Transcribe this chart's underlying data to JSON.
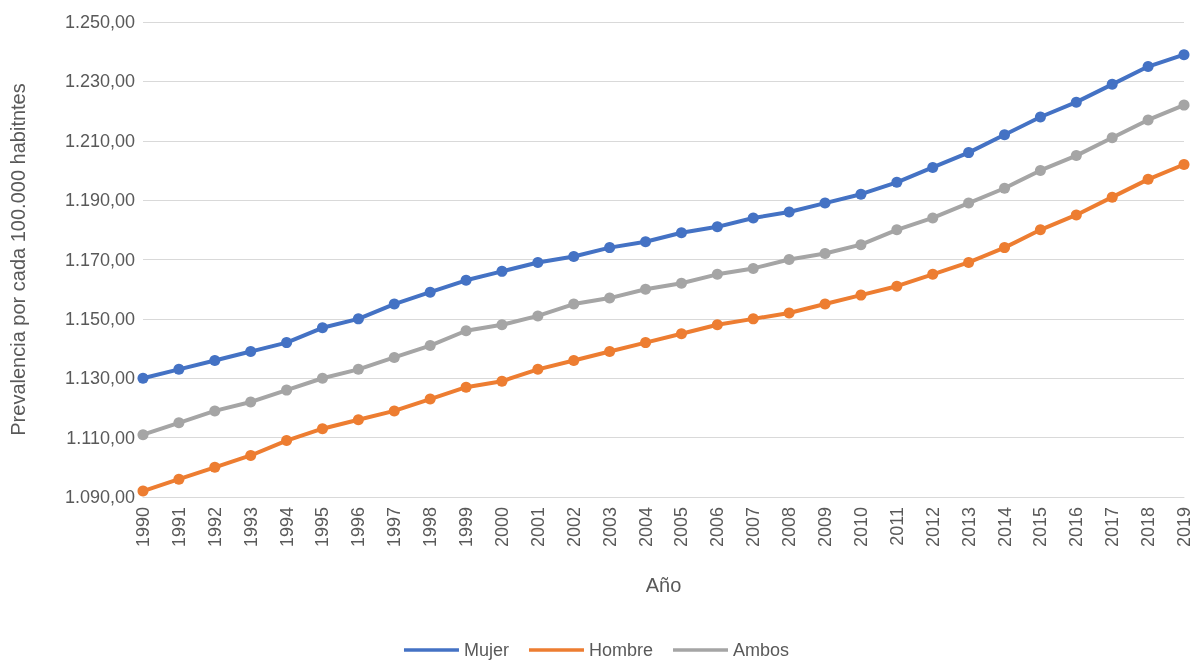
{
  "chart_data": {
    "type": "line",
    "xlabel": "Año",
    "ylabel": "Prevalencia por cada 100.000 habitntes",
    "categories": [
      "1990",
      "1991",
      "1992",
      "1993",
      "1994",
      "1995",
      "1996",
      "1997",
      "1998",
      "1999",
      "2000",
      "2001",
      "2002",
      "2003",
      "2004",
      "2005",
      "2006",
      "2007",
      "2008",
      "2009",
      "2010",
      "2011",
      "2012",
      "2013",
      "2014",
      "2015",
      "2016",
      "2017",
      "2018",
      "2019"
    ],
    "series": [
      {
        "name": "Mujer",
        "color": "#4472c4",
        "values": [
          1130,
          1133,
          1136,
          1139,
          1142,
          1147,
          1150,
          1155,
          1159,
          1163,
          1166,
          1169,
          1171,
          1174,
          1176,
          1179,
          1181,
          1184,
          1186,
          1189,
          1192,
          1196,
          1201,
          1206,
          1212,
          1218,
          1223,
          1229,
          1235,
          1239
        ]
      },
      {
        "name": "Hombre",
        "color": "#ed7d31",
        "values": [
          1092,
          1096,
          1100,
          1104,
          1109,
          1113,
          1116,
          1119,
          1123,
          1127,
          1129,
          1133,
          1136,
          1139,
          1142,
          1145,
          1148,
          1150,
          1152,
          1155,
          1158,
          1161,
          1165,
          1169,
          1174,
          1180,
          1185,
          1191,
          1197,
          1202
        ]
      },
      {
        "name": "Ambos",
        "color": "#a5a5a5",
        "values": [
          1111,
          1115,
          1119,
          1122,
          1126,
          1130,
          1133,
          1137,
          1141,
          1146,
          1148,
          1151,
          1155,
          1157,
          1160,
          1162,
          1165,
          1167,
          1170,
          1172,
          1175,
          1180,
          1184,
          1189,
          1194,
          1200,
          1205,
          1211,
          1217,
          1222
        ]
      }
    ],
    "ylim": [
      1090,
      1250
    ],
    "yticks": [
      {
        "value": 1090,
        "label": "1.090,00"
      },
      {
        "value": 1110,
        "label": "1.110,00"
      },
      {
        "value": 1130,
        "label": "1.130,00"
      },
      {
        "value": 1150,
        "label": "1.150,00"
      },
      {
        "value": 1170,
        "label": "1.170,00"
      },
      {
        "value": 1190,
        "label": "1.190,00"
      },
      {
        "value": 1210,
        "label": "1.210,00"
      },
      {
        "value": 1230,
        "label": "1.230,00"
      },
      {
        "value": 1250,
        "label": "1.250,00"
      }
    ],
    "grid": "y",
    "legend": "bottom",
    "marker": "circle",
    "line_style": "solid"
  }
}
